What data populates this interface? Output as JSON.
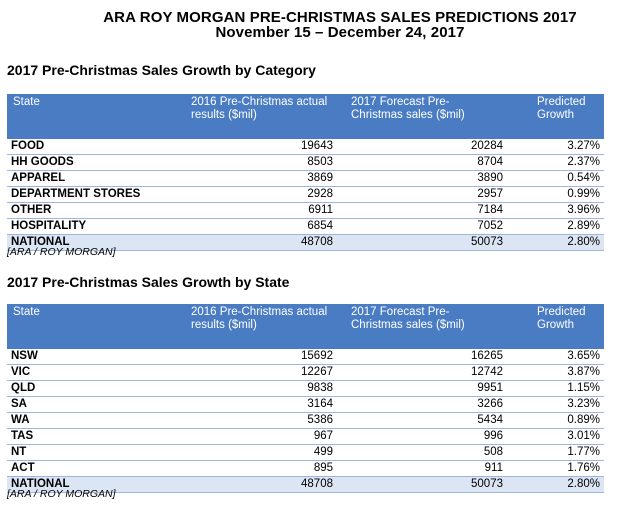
{
  "title": {
    "line1": "ARA ROY MORGAN PRE-CHRISTMAS SALES PREDICTIONS 2017",
    "line2": "November 15 – December 24, 2017"
  },
  "category": {
    "heading": "2017 Pre-Christmas Sales Growth by Category",
    "columns": {
      "state": "State",
      "actual": "2016 Pre-Christmas actual results ($mil)",
      "forecast": "2017 Forecast Pre-Christmas sales ($mil)",
      "growth": "Predicted Growth"
    },
    "rows": [
      {
        "label": "FOOD",
        "actual": "19643",
        "forecast": "20284",
        "growth": "3.27%"
      },
      {
        "label": "HH GOODS",
        "actual": "8503",
        "forecast": "8704",
        "growth": "2.37%"
      },
      {
        "label": "APPAREL",
        "actual": "3869",
        "forecast": "3890",
        "growth": "0.54%"
      },
      {
        "label": "DEPARTMENT STORES",
        "actual": "2928",
        "forecast": "2957",
        "growth": "0.99%"
      },
      {
        "label": "OTHER",
        "actual": "6911",
        "forecast": "7184",
        "growth": "3.96%"
      },
      {
        "label": "HOSPITALITY",
        "actual": "6854",
        "forecast": "7052",
        "growth": "2.89%"
      },
      {
        "label": "NATIONAL",
        "actual": "48708",
        "forecast": "50073",
        "growth": "2.80%"
      }
    ],
    "source": "[ARA / ROY MORGAN]"
  },
  "state": {
    "heading": "2017 Pre-Christmas Sales Growth by State",
    "columns": {
      "state": "State",
      "actual": "2016 Pre-Christmas actual results ($mil)",
      "forecast": "2017 Forecast Pre-Christmas sales ($mil)",
      "growth": "Predicted Growth"
    },
    "rows": [
      {
        "label": "NSW",
        "actual": "15692",
        "forecast": "16265",
        "growth": "3.65%"
      },
      {
        "label": "VIC",
        "actual": "12267",
        "forecast": "12742",
        "growth": "3.87%"
      },
      {
        "label": "QLD",
        "actual": "9838",
        "forecast": "9951",
        "growth": "1.15%"
      },
      {
        "label": "SA",
        "actual": "3164",
        "forecast": "3266",
        "growth": "3.23%"
      },
      {
        "label": "WA",
        "actual": "5386",
        "forecast": "5434",
        "growth": "0.89%"
      },
      {
        "label": "TAS",
        "actual": "967",
        "forecast": "996",
        "growth": "3.01%"
      },
      {
        "label": "NT",
        "actual": "499",
        "forecast": "508",
        "growth": "1.77%"
      },
      {
        "label": "ACT",
        "actual": "895",
        "forecast": "911",
        "growth": "1.76%"
      },
      {
        "label": "NATIONAL",
        "actual": "48708",
        "forecast": "50073",
        "growth": "2.80%"
      }
    ],
    "source": "[ARA / ROY MORGAN]"
  }
}
